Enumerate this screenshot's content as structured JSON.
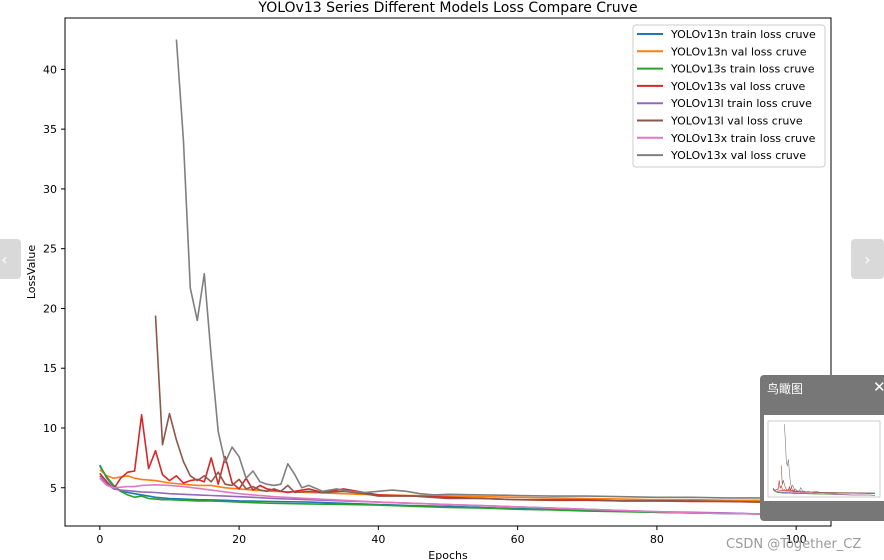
{
  "chart_data": {
    "type": "line",
    "title": "YOLOv13 Series Different Models Loss Compare Cruve",
    "xlabel": "Epochs",
    "ylabel": "LossValue",
    "xlim": [
      -5,
      105
    ],
    "ylim": [
      1.8,
      44.3
    ],
    "xticks": [
      0,
      20,
      40,
      60,
      80,
      100
    ],
    "yticks": [
      5,
      10,
      15,
      20,
      25,
      30,
      35,
      40
    ],
    "grid": false,
    "legend_position": "top-right",
    "series": [
      {
        "name": "YOLOv13n train loss cruve",
        "color": "#1f77b4",
        "x": [
          0,
          1,
          2,
          3,
          4,
          5,
          6,
          7,
          8,
          9,
          10,
          12,
          14,
          16,
          18,
          20,
          22,
          25,
          30,
          35,
          40,
          45,
          50,
          55,
          60,
          65,
          70,
          75,
          80,
          85,
          90,
          95,
          100
        ],
        "y": [
          6.9,
          5.8,
          5.1,
          4.7,
          4.6,
          4.5,
          4.4,
          4.3,
          4.2,
          4.15,
          4.1,
          4.05,
          4.0,
          3.98,
          3.95,
          3.9,
          3.88,
          3.85,
          3.8,
          3.7,
          3.6,
          3.5,
          3.45,
          3.35,
          3.25,
          3.2,
          3.1,
          3.05,
          2.95,
          2.9,
          2.85,
          2.8,
          2.75
        ]
      },
      {
        "name": "YOLOv13n val loss cruve",
        "color": "#ff7f0e",
        "x": [
          0,
          1,
          2,
          3,
          4,
          5,
          6,
          8,
          10,
          12,
          14,
          16,
          18,
          20,
          22,
          25,
          30,
          35,
          40,
          45,
          50,
          55,
          60,
          65,
          70,
          75,
          80,
          85,
          90,
          95,
          100
        ],
        "y": [
          6.5,
          6.0,
          5.8,
          5.9,
          6.0,
          5.8,
          5.7,
          5.6,
          5.4,
          5.3,
          5.2,
          5.2,
          5.0,
          4.9,
          4.8,
          4.7,
          4.6,
          4.5,
          4.4,
          4.35,
          4.3,
          4.25,
          4.2,
          4.15,
          4.1,
          4.05,
          4.0,
          4.0,
          3.95,
          3.95,
          3.9
        ]
      },
      {
        "name": "YOLOv13s train loss cruve",
        "color": "#2ca02c",
        "x": [
          0,
          1,
          2,
          3,
          4,
          5,
          6,
          7,
          8,
          9,
          10,
          12,
          14,
          16,
          18,
          20,
          22,
          25,
          30,
          35,
          40,
          45,
          50,
          55,
          60,
          65,
          70,
          75,
          80,
          85,
          90,
          95,
          100
        ],
        "y": [
          6.8,
          5.9,
          5.2,
          4.7,
          4.4,
          4.2,
          4.3,
          4.1,
          4.05,
          4.0,
          4.0,
          3.95,
          3.9,
          3.9,
          3.85,
          3.8,
          3.75,
          3.7,
          3.65,
          3.6,
          3.55,
          3.45,
          3.35,
          3.3,
          3.2,
          3.15,
          3.05,
          3.0,
          2.95,
          2.9,
          2.85,
          2.8,
          2.75
        ]
      },
      {
        "name": "YOLOv13s val loss cruve",
        "color": "#d62728",
        "x": [
          0,
          1,
          2,
          3,
          4,
          5,
          6,
          7,
          8,
          9,
          10,
          11,
          12,
          13,
          14,
          15,
          16,
          17,
          18,
          19,
          20,
          21,
          22,
          23,
          24,
          25,
          27,
          30,
          32,
          35,
          40,
          45,
          50,
          55,
          60,
          65,
          70,
          75,
          80,
          85,
          90,
          95,
          100
        ],
        "y": [
          6.2,
          5.5,
          4.9,
          5.8,
          6.3,
          6.4,
          11.1,
          6.6,
          8.1,
          6.1,
          5.6,
          6.0,
          5.4,
          5.6,
          5.7,
          5.5,
          7.5,
          5.3,
          7.6,
          5.4,
          4.9,
          5.8,
          4.8,
          5.2,
          4.9,
          4.8,
          4.6,
          4.9,
          4.6,
          4.9,
          4.4,
          4.3,
          4.2,
          4.1,
          4.0,
          3.95,
          3.95,
          3.9,
          3.9,
          3.85,
          3.85,
          3.8,
          3.8
        ]
      },
      {
        "name": "YOLOv13l train loss cruve",
        "color": "#9467bd",
        "x": [
          0,
          1,
          2,
          3,
          4,
          5,
          6,
          8,
          10,
          12,
          14,
          16,
          18,
          20,
          22,
          25,
          30,
          35,
          40,
          45,
          50,
          55,
          60,
          65,
          70,
          75,
          80,
          85,
          90,
          95,
          100
        ],
        "y": [
          6.0,
          5.3,
          4.9,
          4.8,
          4.75,
          4.7,
          4.65,
          4.6,
          4.5,
          4.45,
          4.4,
          4.35,
          4.3,
          4.25,
          4.2,
          4.1,
          4.0,
          3.9,
          3.8,
          3.7,
          3.6,
          3.5,
          3.4,
          3.3,
          3.2,
          3.1,
          3.0,
          2.95,
          2.9,
          2.8,
          2.7
        ]
      },
      {
        "name": "YOLOv13l val loss cruve",
        "color": "#8c564b",
        "x": [
          8,
          9,
          10,
          11,
          12,
          13,
          14,
          15,
          16,
          17,
          18,
          19,
          20,
          21,
          22,
          23,
          24,
          25,
          26,
          27,
          28,
          30,
          32,
          35,
          38,
          40,
          45,
          50,
          55,
          60,
          65,
          70,
          75,
          80,
          85,
          90,
          95,
          100
        ],
        "y": [
          19.4,
          8.6,
          11.2,
          9.0,
          7.2,
          6.0,
          5.6,
          6.0,
          5.5,
          6.3,
          5.3,
          5.2,
          5.7,
          4.9,
          5.1,
          4.8,
          4.7,
          4.9,
          4.7,
          5.2,
          4.6,
          4.7,
          4.6,
          4.7,
          4.5,
          4.3,
          4.3,
          4.1,
          4.1,
          4.0,
          4.0,
          4.0,
          3.9,
          3.9,
          3.9,
          3.85,
          3.8,
          3.8
        ]
      },
      {
        "name": "YOLOv13x train loss cruve",
        "color": "#e377c2",
        "x": [
          0,
          1,
          2,
          3,
          4,
          5,
          6,
          8,
          10,
          12,
          14,
          16,
          18,
          20,
          22,
          25,
          30,
          35,
          40,
          45,
          50,
          55,
          60,
          65,
          70,
          75,
          80,
          85,
          90,
          95,
          100
        ],
        "y": [
          5.8,
          5.2,
          5.0,
          5.05,
          5.1,
          5.1,
          5.2,
          5.25,
          5.2,
          5.1,
          4.95,
          4.8,
          4.65,
          4.5,
          4.4,
          4.25,
          4.1,
          3.95,
          3.8,
          3.7,
          3.6,
          3.5,
          3.4,
          3.3,
          3.2,
          3.1,
          3.0,
          2.9,
          2.85,
          2.8,
          2.7
        ]
      },
      {
        "name": "YOLOv13x val loss cruve",
        "color": "#7f7f7f",
        "x": [
          11,
          12,
          13,
          14,
          15,
          16,
          17,
          18,
          19,
          20,
          21,
          22,
          23,
          24,
          25,
          26,
          27,
          28,
          29,
          30,
          32,
          34,
          36,
          38,
          40,
          42,
          44,
          46,
          48,
          50,
          55,
          60,
          65,
          70,
          75,
          80,
          85,
          90,
          95,
          100
        ],
        "y": [
          42.5,
          34.1,
          21.7,
          19.0,
          22.9,
          16.0,
          9.7,
          7.1,
          8.4,
          7.6,
          5.8,
          6.4,
          5.5,
          5.3,
          5.2,
          5.3,
          7.0,
          6.1,
          5.0,
          5.2,
          4.7,
          4.9,
          4.7,
          4.6,
          4.7,
          4.8,
          4.7,
          4.5,
          4.4,
          4.45,
          4.4,
          4.35,
          4.3,
          4.3,
          4.25,
          4.2,
          4.2,
          4.15,
          4.15,
          4.1
        ]
      }
    ]
  },
  "minimap": {
    "title": "鸟瞰图",
    "close_icon": "close-icon"
  },
  "nav": {
    "prev_icon": "chevron-left-icon",
    "next_icon": "chevron-right-icon",
    "prev_glyph": "‹",
    "next_glyph": "›"
  },
  "watermark": "CSDN @Together_CZ"
}
